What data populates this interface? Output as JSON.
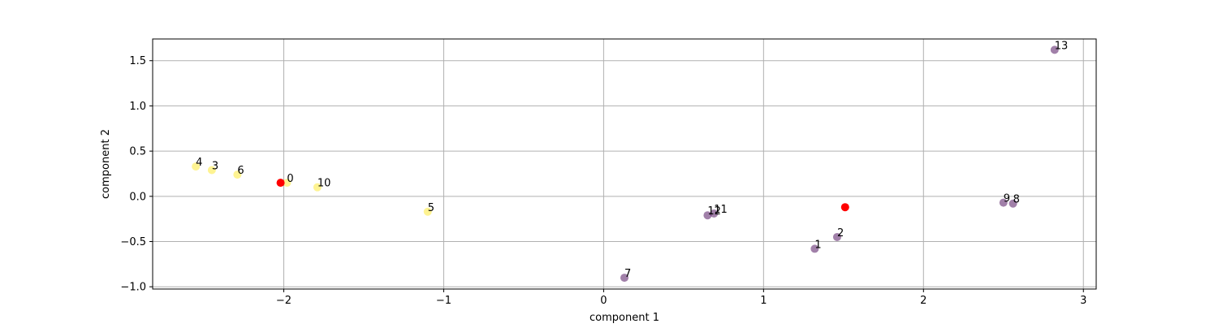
{
  "chart_data": {
    "type": "scatter",
    "xlabel": "component 1",
    "ylabel": "component 2",
    "xlim": [
      -2.82,
      3.08
    ],
    "ylim": [
      -1.025,
      1.74
    ],
    "xticks": [
      -2,
      -1,
      0,
      1,
      2,
      3
    ],
    "yticks": [
      -1.0,
      -0.5,
      0.0,
      0.5,
      1.0,
      1.5
    ],
    "xtick_labels": [
      "−2",
      "−1",
      "0",
      "1",
      "2",
      "3"
    ],
    "ytick_labels": [
      "−1.0",
      "−0.5",
      "0.0",
      "0.5",
      "1.0",
      "1.5"
    ],
    "grid": true,
    "legend": false,
    "colors": {
      "cluster_0": "#440154",
      "cluster_1": "#fde725",
      "centroid": "#ff0000"
    },
    "points": [
      {
        "label": "0",
        "x": -1.98,
        "y": 0.15,
        "cluster": 1
      },
      {
        "label": "1",
        "x": 1.32,
        "y": -0.58,
        "cluster": 0
      },
      {
        "label": "2",
        "x": 1.46,
        "y": -0.45,
        "cluster": 0
      },
      {
        "label": "3",
        "x": -2.45,
        "y": 0.29,
        "cluster": 1
      },
      {
        "label": "4",
        "x": -2.55,
        "y": 0.33,
        "cluster": 1
      },
      {
        "label": "5",
        "x": -1.1,
        "y": -0.17,
        "cluster": 1
      },
      {
        "label": "6",
        "x": -2.29,
        "y": 0.24,
        "cluster": 1
      },
      {
        "label": "7",
        "x": 0.13,
        "y": -0.9,
        "cluster": 0
      },
      {
        "label": "8",
        "x": 2.56,
        "y": -0.08,
        "cluster": 0
      },
      {
        "label": "9",
        "x": 2.5,
        "y": -0.07,
        "cluster": 0
      },
      {
        "label": "10",
        "x": -1.79,
        "y": 0.1,
        "cluster": 1
      },
      {
        "label": "11",
        "x": 0.69,
        "y": -0.19,
        "cluster": 0
      },
      {
        "label": "12",
        "x": 0.65,
        "y": -0.21,
        "cluster": 0
      },
      {
        "label": "13",
        "x": 2.82,
        "y": 1.62,
        "cluster": 0
      }
    ],
    "centroids": [
      {
        "x": -2.02,
        "y": 0.15
      },
      {
        "x": 1.51,
        "y": -0.12
      }
    ]
  }
}
